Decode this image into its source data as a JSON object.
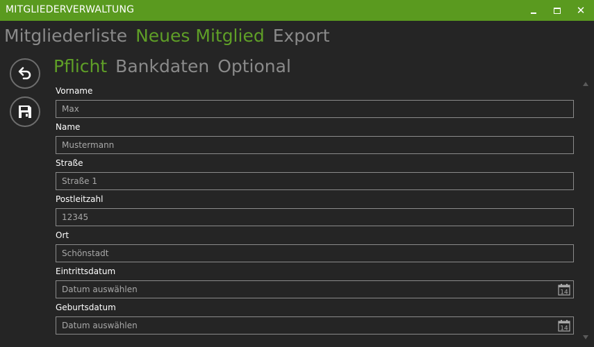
{
  "window": {
    "title": "MITGLIEDERVERWALTUNG",
    "accent_color": "#5a9a1f",
    "controls": [
      "minimize-icon",
      "maximize-icon",
      "close-icon"
    ],
    "close_glyph": "✕"
  },
  "main_tabs": [
    {
      "label": "Mitgliederliste",
      "active": false
    },
    {
      "label": "Neues Mitglied",
      "active": true
    },
    {
      "label": "Export",
      "active": false
    }
  ],
  "sub_tabs": [
    {
      "label": "Pflicht",
      "active": true
    },
    {
      "label": "Bankdaten",
      "active": false
    },
    {
      "label": "Optional",
      "active": false
    }
  ],
  "actions": {
    "undo_icon": "undo-icon",
    "save_icon": "floppy-disk-icon"
  },
  "form": {
    "fields": [
      {
        "label": "Vorname",
        "value": "Max"
      },
      {
        "label": "Name",
        "value": "Mustermann"
      },
      {
        "label": "Straße",
        "value": "Straße 1"
      },
      {
        "label": "Postleitzahl",
        "value": "12345"
      },
      {
        "label": "Ort",
        "value": "Schönstadt"
      },
      {
        "label": "Eintrittsdatum",
        "value": "Datum auswählen",
        "calendar_day": "14"
      },
      {
        "label": "Geburtsdatum",
        "value": "Datum auswählen",
        "calendar_day": "14"
      }
    ]
  }
}
